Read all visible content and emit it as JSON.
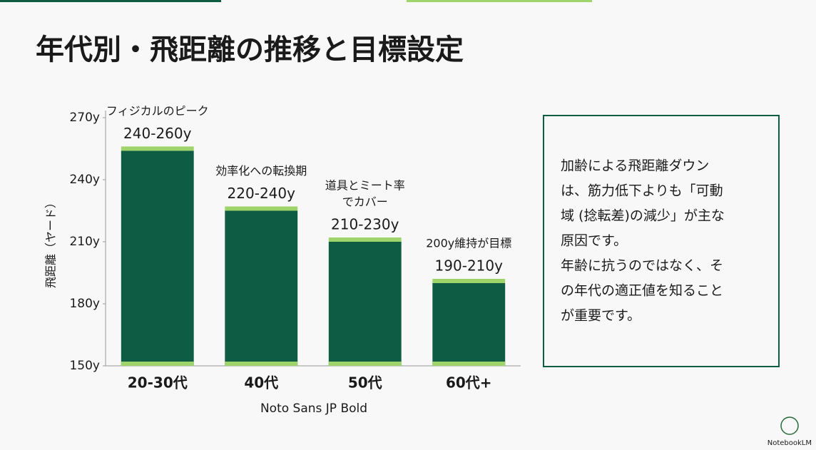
{
  "chart_data": {
    "type": "bar",
    "title": "年代別・飛距離の推移と目標設定",
    "ylabel": "飛距離（ヤード）",
    "xlabel": "Noto Sans JP Bold",
    "categories": [
      "20-30代",
      "40代",
      "50代",
      "60代+"
    ],
    "values": [
      254,
      225,
      210,
      190
    ],
    "color": "#0f5c45",
    "cap_color": "#9fd46b",
    "range_labels": [
      "240-260y",
      "220-240y",
      "210-230y",
      "190-210y"
    ],
    "notes": [
      [
        "フィジカルのピーク"
      ],
      [
        "効率化への転換期"
      ],
      [
        "道具とミート率",
        "でカバー"
      ],
      [
        "200y維持が目標"
      ]
    ],
    "ylim": [
      150,
      270
    ],
    "yticks": [
      {
        "value": 150,
        "label": "150y"
      },
      {
        "value": 180,
        "label": "180y"
      },
      {
        "value": 210,
        "label": "210y"
      },
      {
        "value": 240,
        "label": "240y"
      },
      {
        "value": 270,
        "label": "270y"
      }
    ],
    "grid": false
  },
  "side_text": [
    "加齢による飛距離ダウン",
    "は、筋力低下よりも「可動",
    "域 (捻転差)の減少」が主な",
    "原因です。",
    "年齢に抗うのではなく、そ",
    "の年代の適正値を知ること",
    "が重要です。"
  ],
  "footer": "NotebookLM"
}
